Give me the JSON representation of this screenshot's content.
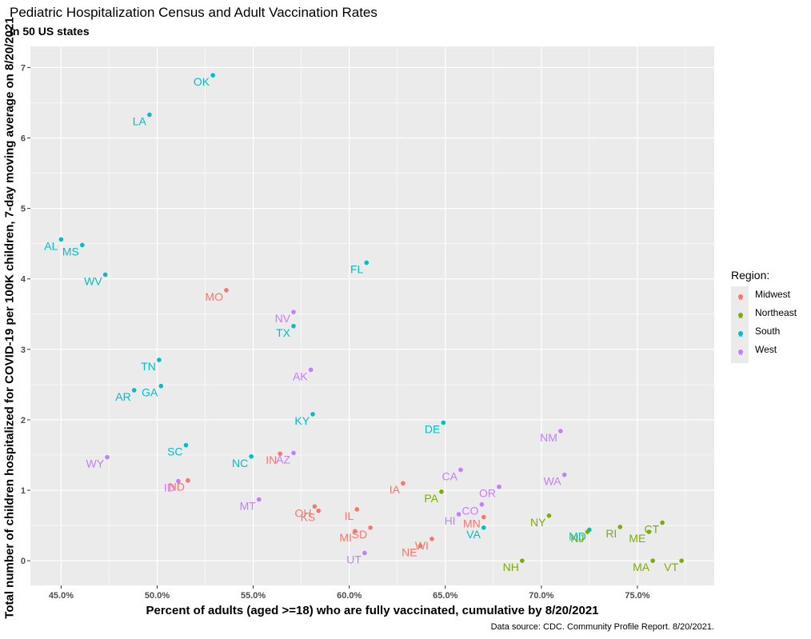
{
  "chart_data": {
    "type": "scatter",
    "title": "Pediatric Hospitalization Census and Adult Vaccination Rates",
    "subtitle": "in 50 US states",
    "xlabel": "Percent of adults (aged >=18) who are fully vaccinated, cumulative by 8/20/2021",
    "ylabel": "Total number of children hospitalized for COVID-19 per 100K children, 7-day moving average on 8/20/2021",
    "caption": "Data source: CDC. Community Profile Report. 8/20/2021.",
    "xlim": [
      43.4,
      79.0
    ],
    "ylim": [
      -0.35,
      7.3
    ],
    "x_ticks": [
      45,
      50,
      55,
      60,
      65,
      70,
      75
    ],
    "x_tick_labels": [
      "45.0%",
      "50.0%",
      "55.0%",
      "60.0%",
      "65.0%",
      "70.0%",
      "75.0%"
    ],
    "y_ticks": [
      0,
      1,
      2,
      3,
      4,
      5,
      6,
      7
    ],
    "y_tick_labels": [
      "0",
      "1",
      "2",
      "3",
      "4",
      "5",
      "6",
      "7"
    ],
    "grid": true,
    "legend": {
      "title": "Region:",
      "placement": "right",
      "entries": [
        {
          "name": "Midwest",
          "color": "#F8766D"
        },
        {
          "name": "Northeast",
          "color": "#7CAE00"
        },
        {
          "name": "South",
          "color": "#00BFC4"
        },
        {
          "name": "West",
          "color": "#C77CFF"
        }
      ]
    },
    "points": [
      {
        "state": "OK",
        "region": "South",
        "x": 52.9,
        "y": 6.89
      },
      {
        "state": "LA",
        "region": "South",
        "x": 49.6,
        "y": 6.33
      },
      {
        "state": "AL",
        "region": "South",
        "x": 45.0,
        "y": 4.56
      },
      {
        "state": "MS",
        "region": "South",
        "x": 46.1,
        "y": 4.48
      },
      {
        "state": "WV",
        "region": "South",
        "x": 47.3,
        "y": 4.06
      },
      {
        "state": "FL",
        "region": "South",
        "x": 60.9,
        "y": 4.23
      },
      {
        "state": "MO",
        "region": "Midwest",
        "x": 53.6,
        "y": 3.84
      },
      {
        "state": "NV",
        "region": "West",
        "x": 57.1,
        "y": 3.53
      },
      {
        "state": "TX",
        "region": "South",
        "x": 57.1,
        "y": 3.33
      },
      {
        "state": "TN",
        "region": "South",
        "x": 50.1,
        "y": 2.85
      },
      {
        "state": "AK",
        "region": "West",
        "x": 58.0,
        "y": 2.71
      },
      {
        "state": "GA",
        "region": "South",
        "x": 50.2,
        "y": 2.48
      },
      {
        "state": "AR",
        "region": "South",
        "x": 48.8,
        "y": 2.42
      },
      {
        "state": "KY",
        "region": "South",
        "x": 58.1,
        "y": 2.08
      },
      {
        "state": "DE",
        "region": "South",
        "x": 64.9,
        "y": 1.96
      },
      {
        "state": "NM",
        "region": "West",
        "x": 71.0,
        "y": 1.84
      },
      {
        "state": "SC",
        "region": "South",
        "x": 51.5,
        "y": 1.64
      },
      {
        "state": "WY",
        "region": "West",
        "x": 47.4,
        "y": 1.47
      },
      {
        "state": "NC",
        "region": "South",
        "x": 54.9,
        "y": 1.48
      },
      {
        "state": "IN",
        "region": "Midwest",
        "x": 56.4,
        "y": 1.52
      },
      {
        "state": "AZ",
        "region": "West",
        "x": 57.1,
        "y": 1.53
      },
      {
        "state": "CA",
        "region": "West",
        "x": 65.8,
        "y": 1.29
      },
      {
        "state": "WA",
        "region": "West",
        "x": 71.2,
        "y": 1.22
      },
      {
        "state": "ID",
        "region": "West",
        "x": 51.1,
        "y": 1.13
      },
      {
        "state": "ND",
        "region": "Midwest",
        "x": 51.6,
        "y": 1.14
      },
      {
        "state": "IA",
        "region": "Midwest",
        "x": 62.8,
        "y": 1.1
      },
      {
        "state": "OR",
        "region": "West",
        "x": 67.8,
        "y": 1.05
      },
      {
        "state": "PA",
        "region": "Northeast",
        "x": 64.8,
        "y": 0.98
      },
      {
        "state": "MT",
        "region": "West",
        "x": 55.3,
        "y": 0.87
      },
      {
        "state": "CO",
        "region": "West",
        "x": 66.9,
        "y": 0.8
      },
      {
        "state": "OH",
        "region": "Midwest",
        "x": 58.2,
        "y": 0.77
      },
      {
        "state": "KS",
        "region": "Midwest",
        "x": 58.4,
        "y": 0.71
      },
      {
        "state": "IL",
        "region": "Midwest",
        "x": 60.4,
        "y": 0.73
      },
      {
        "state": "HI",
        "region": "West",
        "x": 65.7,
        "y": 0.66
      },
      {
        "state": "NY",
        "region": "Northeast",
        "x": 70.4,
        "y": 0.64
      },
      {
        "state": "MN",
        "region": "Midwest",
        "x": 67.0,
        "y": 0.62
      },
      {
        "state": "VA",
        "region": "South",
        "x": 67.0,
        "y": 0.47
      },
      {
        "state": "CT",
        "region": "Northeast",
        "x": 76.3,
        "y": 0.54
      },
      {
        "state": "RI",
        "region": "Northeast",
        "x": 74.1,
        "y": 0.48
      },
      {
        "state": "MD",
        "region": "South",
        "x": 72.5,
        "y": 0.44
      },
      {
        "state": "NJ",
        "region": "Northeast",
        "x": 72.4,
        "y": 0.41
      },
      {
        "state": "ME",
        "region": "Northeast",
        "x": 75.6,
        "y": 0.41
      },
      {
        "state": "SD",
        "region": "Midwest",
        "x": 61.1,
        "y": 0.47
      },
      {
        "state": "MI",
        "region": "Midwest",
        "x": 60.3,
        "y": 0.42
      },
      {
        "state": "WI",
        "region": "Midwest",
        "x": 64.3,
        "y": 0.31
      },
      {
        "state": "NE",
        "region": "Midwest",
        "x": 63.7,
        "y": 0.21
      },
      {
        "state": "UT",
        "region": "West",
        "x": 60.8,
        "y": 0.11
      },
      {
        "state": "NH",
        "region": "Northeast",
        "x": 69.0,
        "y": 0.0
      },
      {
        "state": "MA",
        "region": "Northeast",
        "x": 75.8,
        "y": 0.0
      },
      {
        "state": "VT",
        "region": "Northeast",
        "x": 77.3,
        "y": 0.0
      }
    ]
  }
}
